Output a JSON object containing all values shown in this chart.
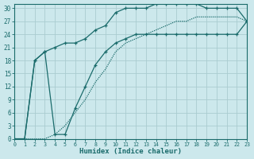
{
  "xlabel": "Humidex (Indice chaleur)",
  "bg_color": "#cce8ec",
  "grid_color": "#aaccd0",
  "line_color": "#1a6b6b",
  "xlim": [
    0,
    23
  ],
  "ylim": [
    0,
    31
  ],
  "yticks": [
    0,
    3,
    6,
    9,
    12,
    15,
    18,
    21,
    24,
    27,
    30
  ],
  "xticks": [
    0,
    1,
    2,
    3,
    4,
    5,
    6,
    7,
    8,
    9,
    10,
    11,
    12,
    13,
    14,
    15,
    16,
    17,
    18,
    19,
    20,
    21,
    22,
    23
  ],
  "curve_a_x": [
    0,
    1,
    2,
    3,
    4,
    5,
    6,
    7,
    8,
    9,
    10,
    11,
    12,
    13,
    14,
    15,
    16,
    17,
    18,
    19,
    20,
    21,
    22,
    23
  ],
  "curve_a_y": [
    0,
    0,
    18,
    20,
    21,
    22,
    22,
    23,
    25,
    26,
    29,
    30,
    30,
    30,
    31,
    31,
    31,
    31,
    31,
    30,
    30,
    30,
    30,
    27
  ],
  "curve_b_x": [
    0,
    1,
    2,
    3,
    4,
    5,
    6,
    7,
    8,
    9,
    10,
    11,
    12,
    13,
    14,
    15,
    16,
    17,
    18,
    19,
    20,
    21,
    22,
    23
  ],
  "curve_b_y": [
    0,
    0,
    18,
    20,
    1,
    1,
    7,
    12,
    17,
    20,
    22,
    23,
    24,
    24,
    24,
    24,
    24,
    24,
    24,
    24,
    24,
    24,
    24,
    27
  ],
  "curve_c_x": [
    0,
    1,
    2,
    3,
    4,
    5,
    6,
    7,
    8,
    9,
    10,
    11,
    12,
    13,
    14,
    15,
    16,
    17,
    18,
    19,
    20,
    21,
    22,
    23
  ],
  "curve_c_y": [
    0,
    0,
    0,
    0,
    1,
    3,
    6,
    9,
    13,
    16,
    20,
    22,
    23,
    24,
    25,
    26,
    27,
    27,
    28,
    28,
    28,
    28,
    28,
    27
  ]
}
